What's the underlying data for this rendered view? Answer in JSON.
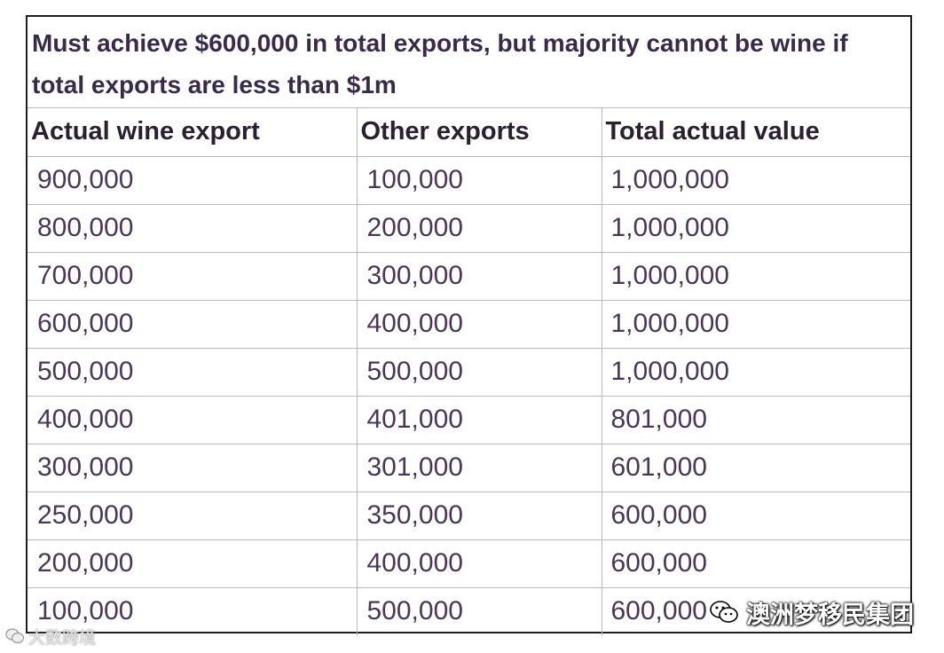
{
  "title": "Must achieve $600,000 in total exports, but majority cannot be wine if total exports are less than $1m",
  "headers": [
    "Actual wine export",
    "Other exports",
    "Total actual value"
  ],
  "rows": [
    [
      "900,000",
      "100,000",
      "1,000,000"
    ],
    [
      "800,000",
      "200,000",
      "1,000,000"
    ],
    [
      "700,000",
      "300,000",
      "1,000,000"
    ],
    [
      "600,000",
      "400,000",
      "1,000,000"
    ],
    [
      "500,000",
      "500,000",
      "1,000,000"
    ],
    [
      "400,000",
      "401,000",
      "801,000"
    ],
    [
      "300,000",
      "301,000",
      "601,000"
    ],
    [
      "250,000",
      "350,000",
      "600,000"
    ],
    [
      "200,000",
      "400,000",
      "600,000"
    ],
    [
      "100,000",
      "500,000",
      "600,000"
    ]
  ],
  "watermarks": {
    "right": "澳洲梦移民集团",
    "left": "大数跨境"
  },
  "colors": {
    "heading_text": "#3a2a4a",
    "cell_text": "#4a3656",
    "grid_line": "#b8b8b8",
    "frame": "#1e1e1e"
  },
  "icons": [
    "wechat-icon"
  ]
}
